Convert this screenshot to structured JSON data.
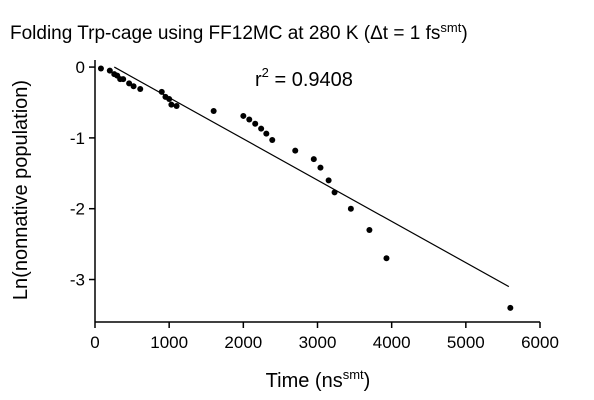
{
  "chart_data": {
    "type": "scatter",
    "title": "Folding Trp-cage using FF12MC at 280 K (Δt = 1 fs",
    "title_sup": "smt",
    "title_end": ")",
    "xlabel": "Time (ns",
    "xlabel_sup": "smt",
    "xlabel_end": ")",
    "ylabel": "Ln(nonnative population)",
    "xlim": [
      0,
      6000
    ],
    "ylim": [
      -3.6,
      0.1
    ],
    "xticks": [
      0,
      1000,
      2000,
      3000,
      4000,
      5000,
      6000
    ],
    "xtick_labels": [
      "0",
      "1000",
      "2000",
      "3000",
      "4000",
      "5000",
      "6000"
    ],
    "yticks": [
      0,
      -1,
      -2,
      -3
    ],
    "ytick_labels": [
      "0",
      "-1",
      "-2",
      "-3"
    ],
    "grid": false,
    "legend": "none",
    "annotation": {
      "prefix": "r",
      "sup": "2",
      "text": " = 0.9408"
    },
    "series": [
      {
        "x": [
          80,
          200,
          260,
          300,
          340,
          380,
          460,
          520,
          610,
          900,
          950,
          1000,
          1030,
          1100,
          1600,
          2000,
          2080,
          2160,
          2240,
          2310,
          2390,
          2700,
          2950,
          3040,
          3150,
          3230,
          3450,
          3700,
          3930,
          5600
        ],
        "y": [
          -0.02,
          -0.05,
          -0.1,
          -0.12,
          -0.17,
          -0.17,
          -0.23,
          -0.27,
          -0.31,
          -0.35,
          -0.42,
          -0.45,
          -0.53,
          -0.55,
          -0.62,
          -0.69,
          -0.74,
          -0.8,
          -0.87,
          -0.94,
          -1.03,
          -1.18,
          -1.3,
          -1.42,
          -1.6,
          -1.77,
          -2.0,
          -2.3,
          -2.7,
          -3.4
        ],
        "color": "#000000"
      }
    ],
    "fit_line": {
      "x": [
        260,
        5580
      ],
      "y": [
        0.0,
        -3.1
      ],
      "color": "#000000"
    }
  }
}
